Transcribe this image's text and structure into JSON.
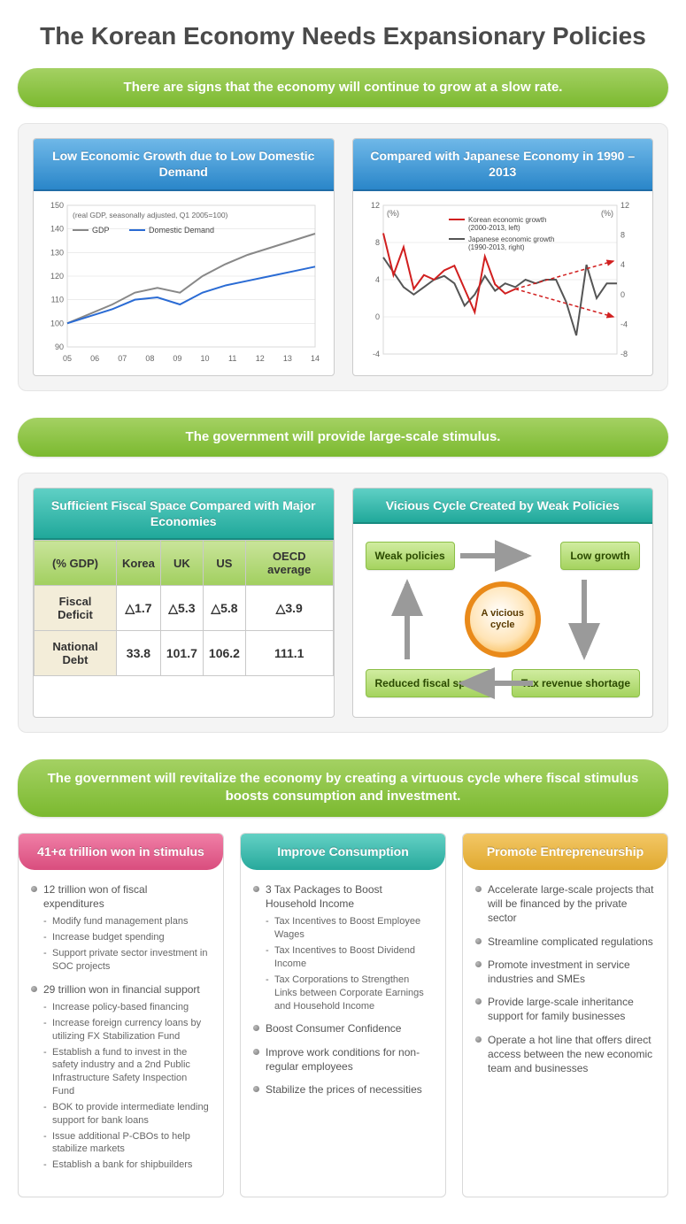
{
  "title": "The Korean Economy Needs Expansionary Policies",
  "bars": [
    "There are signs that the economy will continue to grow at a slow rate.",
    "The government will provide large-scale stimulus.",
    "The government will revitalize the economy by creating a virtuous cycle where fiscal stimulus boosts consumption and investment."
  ],
  "chart1": {
    "title": "Low Economic Growth due to Low Domestic Demand",
    "note": "(real GDP, seasonally adjusted, Q1 2005=100)",
    "legend": {
      "a": "GDP",
      "b": "Domestic Demand"
    },
    "color_a": "#888888",
    "color_b": "#2a6bd4",
    "y_min": 90,
    "y_max": 150,
    "y_step": 10,
    "x_labels": [
      "05",
      "06",
      "07",
      "08",
      "09",
      "10",
      "11",
      "12",
      "13",
      "14"
    ],
    "series_a": [
      100,
      104,
      108,
      113,
      115,
      113,
      120,
      125,
      129,
      132,
      135,
      138
    ],
    "series_b": [
      100,
      103,
      106,
      110,
      111,
      108,
      113,
      116,
      118,
      120,
      122,
      124
    ],
    "bg": "#ffffff",
    "grid": "#d9d9d9"
  },
  "chart2": {
    "title": "Compared with Japanese Economy in 1990 – 2013",
    "legend": {
      "a": "Korean economic growth (2000-2013, left)",
      "b": "Japanese economic growth (1990-2013, right)"
    },
    "unit_left": "(%)",
    "unit_right": "(%)",
    "color_a": "#d11f1f",
    "color_b": "#555555",
    "color_proj": "#d11f1f",
    "yL_min": -4,
    "yL_max": 12,
    "yL_step": 4,
    "yR_min": -8,
    "yR_max": 12,
    "yR_step": 4,
    "series_a": [
      9,
      4.5,
      7.5,
      3,
      4.5,
      4,
      5,
      5.5,
      3,
      0.5,
      6.5,
      3.5,
      2.5,
      3
    ],
    "series_b": [
      5,
      3,
      1,
      0,
      1,
      2,
      2.5,
      1.5,
      -1.5,
      0,
      2.5,
      0.5,
      1.5,
      1,
      2,
      1.5,
      2,
      2,
      -1,
      -5.5,
      4,
      -0.5,
      1.5,
      1.5
    ],
    "bg": "#ffffff",
    "grid": "#d9d9d9"
  },
  "fiscal": {
    "title": "Sufficient Fiscal Space Compared with Major Economies",
    "head": [
      "(% GDP)",
      "Korea",
      "UK",
      "US",
      "OECD average"
    ],
    "rows": [
      {
        "label": "Fiscal Deficit",
        "vals": [
          "△1.7",
          "△5.3",
          "△5.8",
          "△3.9"
        ]
      },
      {
        "label": "National Debt",
        "vals": [
          "33.8",
          "101.7",
          "106.2",
          "111.1"
        ]
      }
    ]
  },
  "cycle": {
    "title": "Vicious Cycle Created by Weak Policies",
    "center": "A vicious cycle",
    "boxes": {
      "tl": "Weak policies",
      "tr": "Low growth",
      "br": "Tax revenue shortage",
      "bl": "Reduced fiscal space"
    }
  },
  "cols": [
    {
      "color": "pink",
      "title": "41+α trillion won in stimulus",
      "items": [
        {
          "t": "12 trillion won of fiscal expenditures",
          "sub": [
            "Modify fund management plans",
            "Increase budget spending",
            "Support private sector investment in SOC projects"
          ]
        },
        {
          "t": "29 trillion won in financial support",
          "sub": [
            "Increase policy-based financing",
            "Increase foreign currency loans by utilizing FX Stabilization Fund",
            "Establish a fund to invest in the safety industry and a 2nd Public Infrastructure Safety Inspection Fund",
            "BOK to provide intermediate lending support for bank loans",
            "Issue additional P-CBOs to help stabilize markets",
            "Establish a bank for shipbuilders"
          ]
        }
      ]
    },
    {
      "color": "teal2",
      "title": "Improve Consumption",
      "items": [
        {
          "t": "3 Tax Packages to Boost Household Income",
          "sub": [
            "Tax Incentives to Boost Employee Wages",
            "Tax Incentives to Boost Dividend Income",
            "Tax Corporations to Strengthen Links between Corporate Earnings and Household Income"
          ]
        },
        {
          "t": "Boost Consumer Confidence"
        },
        {
          "t": "Improve work conditions for non-regular employees"
        },
        {
          "t": "Stabilize the prices of necessities"
        }
      ]
    },
    {
      "color": "gold",
      "title": "Promote Entrepreneurship",
      "items": [
        {
          "t": "Accelerate large-scale projects that will be financed by the private sector"
        },
        {
          "t": "Streamline complicated regulations"
        },
        {
          "t": "Promote investment in service industries and SMEs"
        },
        {
          "t": "Provide large-scale inheritance support for family businesses"
        },
        {
          "t": "Operate a hot line that offers direct access between the new economic team and businesses"
        }
      ]
    }
  ]
}
